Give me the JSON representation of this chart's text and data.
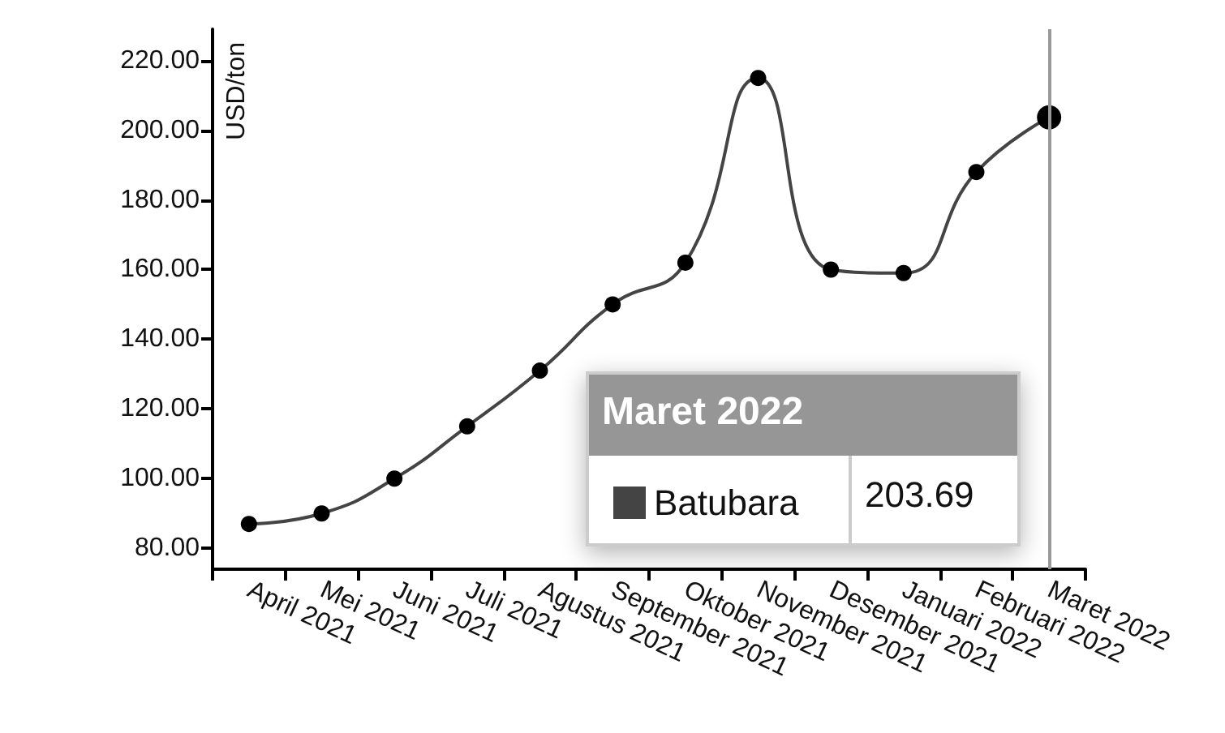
{
  "chart_data": {
    "type": "line",
    "ylabel": "USD/ton",
    "categories": [
      "April 2021",
      "Mei 2021",
      "Juni 2021",
      "Juli 2021",
      "Agustus 2021",
      "September 2021",
      "Oktober 2021",
      "November 2021",
      "Desember 2021",
      "Januari 2022",
      "Februari 2022",
      "Maret 2022"
    ],
    "series": [
      {
        "name": "Batubara",
        "color": "#444444",
        "values": [
          87,
          90,
          100,
          115,
          131,
          150,
          162,
          215,
          160,
          159,
          188,
          203.69
        ]
      }
    ],
    "annotations": [
      "Maret 2022",
      "203.69"
    ],
    "ref_lines": [
      {
        "axis": "x",
        "value": "Maret 2022",
        "color": "#999999"
      }
    ],
    "ylim": [
      74,
      229
    ],
    "yticks": [
      {
        "value": 80,
        "label": "80.00"
      },
      {
        "value": 100,
        "label": "100.00"
      },
      {
        "value": 120,
        "label": "120.00"
      },
      {
        "value": 140,
        "label": "140.00"
      },
      {
        "value": 160,
        "label": "160.00"
      },
      {
        "value": 180,
        "label": "180.00"
      },
      {
        "value": 200,
        "label": "200.00"
      },
      {
        "value": 220,
        "label": "220.00"
      }
    ],
    "legend": "bottom right",
    "grid": false,
    "marker": "circle",
    "line_style": "solid"
  }
}
